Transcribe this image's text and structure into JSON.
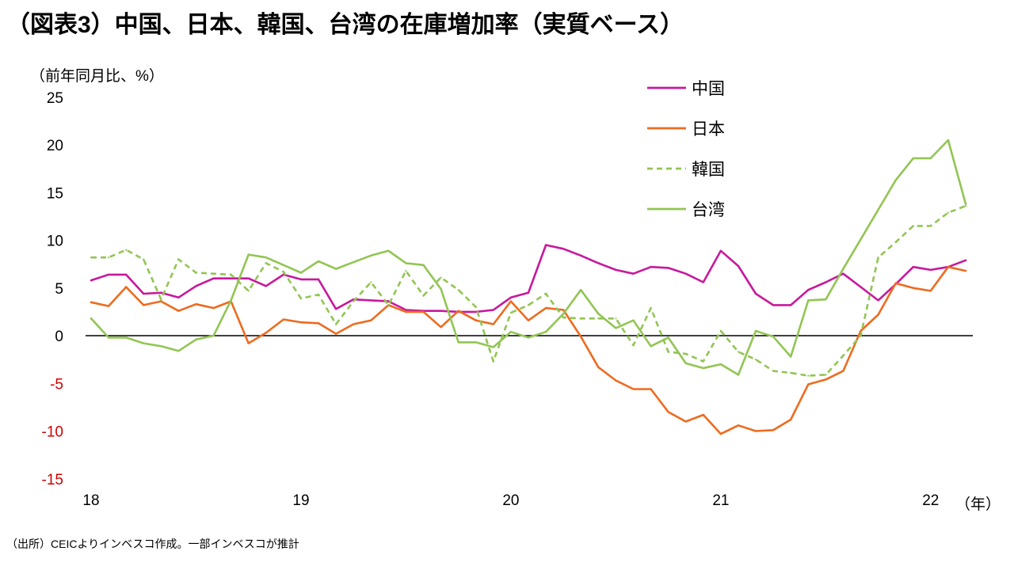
{
  "title": "（図表3）中国、日本、韓国、台湾の在庫増加率（実質ベース）",
  "footer": "（出所）CEICよりインベスコ作成。一部インベスコが推計",
  "chart_data": {
    "type": "line",
    "title": "（図表3）中国、日本、韓国、台湾の在庫増加率（実質ベース）",
    "ylabel": "（前年同月比、%）",
    "xlabel": "（年）",
    "ylim": [
      -15,
      25
    ],
    "yticks": [
      25,
      20,
      15,
      10,
      5,
      0,
      -5,
      -10,
      -15
    ],
    "xticks": [
      "2018-01",
      "2019-01",
      "2020-01",
      "2021-01",
      "2022-01"
    ],
    "xtick_labels": [
      "18",
      "19",
      "20",
      "21",
      "22"
    ],
    "grid": false,
    "zero_line": true,
    "legend_position": "top-right",
    "tick_color": "#000000",
    "negative_tick_color": "#d00000",
    "x": [
      "2018-01",
      "2018-02",
      "2018-03",
      "2018-04",
      "2018-05",
      "2018-06",
      "2018-07",
      "2018-08",
      "2018-09",
      "2018-10",
      "2018-11",
      "2018-12",
      "2019-01",
      "2019-02",
      "2019-03",
      "2019-04",
      "2019-05",
      "2019-06",
      "2019-07",
      "2019-08",
      "2019-09",
      "2019-10",
      "2019-11",
      "2019-12",
      "2020-01",
      "2020-02",
      "2020-03",
      "2020-04",
      "2020-05",
      "2020-06",
      "2020-07",
      "2020-08",
      "2020-09",
      "2020-10",
      "2020-11",
      "2020-12",
      "2021-01",
      "2021-02",
      "2021-03",
      "2021-04",
      "2021-05",
      "2021-06",
      "2021-07",
      "2021-08",
      "2021-09",
      "2021-10",
      "2021-11",
      "2021-12",
      "2022-01",
      "2022-02",
      "2022-03"
    ],
    "series": [
      {
        "name": "中国",
        "color": "#c8189c",
        "style": "solid",
        "values": [
          5.8,
          6.4,
          6.4,
          4.4,
          4.5,
          4.0,
          5.2,
          6.0,
          6.0,
          6.0,
          5.2,
          6.4,
          5.9,
          5.9,
          2.8,
          3.8,
          3.7,
          3.6,
          2.7,
          2.6,
          2.6,
          2.5,
          2.5,
          2.7,
          4.0,
          4.5,
          9.5,
          9.1,
          8.4,
          7.6,
          6.9,
          6.5,
          7.2,
          7.1,
          6.5,
          5.6,
          8.9,
          7.3,
          4.4,
          3.2,
          3.2,
          4.8,
          5.6,
          6.5,
          5.1,
          3.7,
          5.4,
          7.2,
          6.9,
          7.2,
          7.9
        ]
      },
      {
        "name": "日本",
        "color": "#ee6b1f",
        "style": "solid",
        "values": [
          3.5,
          3.1,
          5.1,
          3.2,
          3.6,
          2.6,
          3.3,
          2.9,
          3.6,
          -0.8,
          0.3,
          1.7,
          1.4,
          1.3,
          0.2,
          1.2,
          1.6,
          3.2,
          2.5,
          2.5,
          0.9,
          2.6,
          1.6,
          1.2,
          3.6,
          1.6,
          2.9,
          2.7,
          -0.1,
          -3.3,
          -4.7,
          -5.6,
          -5.6,
          -8.0,
          -9.0,
          -8.3,
          -10.3,
          -9.4,
          -10.0,
          -9.9,
          -8.8,
          -5.1,
          -4.6,
          -3.7,
          0.5,
          2.2,
          5.5,
          5.0,
          4.7,
          7.2,
          6.8
        ]
      },
      {
        "name": "韓国",
        "color": "#92c553",
        "style": "dashed",
        "values": [
          8.2,
          8.2,
          9.0,
          8.0,
          3.8,
          8.0,
          6.6,
          6.5,
          6.4,
          4.7,
          7.6,
          6.7,
          3.9,
          4.3,
          1.2,
          3.6,
          5.6,
          3.2,
          6.8,
          4.2,
          6.1,
          4.8,
          3.0,
          -2.7,
          2.4,
          3.2,
          4.4,
          1.9,
          1.8,
          1.8,
          1.8,
          -1.0,
          2.9,
          -1.7,
          -1.9,
          -2.7,
          0.5,
          -1.7,
          -2.5,
          -3.7,
          -3.9,
          -4.2,
          -4.1,
          -2.1,
          0.0,
          8.2,
          9.8,
          11.5,
          11.5,
          12.9,
          13.6
        ]
      },
      {
        "name": "台湾",
        "color": "#92c553",
        "style": "solid",
        "values": [
          1.8,
          -0.2,
          -0.2,
          -0.8,
          -1.1,
          -1.6,
          -0.4,
          0.0,
          3.7,
          8.5,
          8.2,
          7.4,
          6.6,
          7.8,
          7.0,
          7.7,
          8.4,
          8.9,
          7.6,
          7.4,
          4.9,
          -0.7,
          -0.7,
          -1.2,
          0.4,
          -0.2,
          0.4,
          2.3,
          4.8,
          2.3,
          0.8,
          1.6,
          -1.1,
          -0.2,
          -2.9,
          -3.4,
          -3.0,
          -4.1,
          0.5,
          -0.1,
          -2.2,
          3.7,
          3.8,
          7.0,
          10.1,
          13.2,
          16.3,
          18.6,
          18.6,
          20.5,
          13.8
        ]
      }
    ]
  }
}
